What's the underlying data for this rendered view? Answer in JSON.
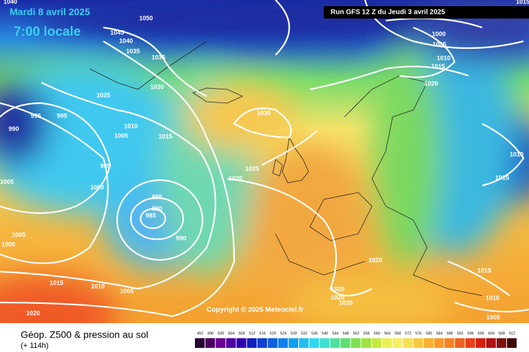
{
  "header": {
    "date": "Mardi 8 avril 2025",
    "time": "7:00 locale",
    "run": "Run GFS 12 Z du Jeudi 3 avril 2025"
  },
  "isobar_labels": [
    1050,
    1045,
    1040,
    1035,
    1035,
    1030,
    1025,
    1010,
    1005,
    1015,
    995,
    995,
    990,
    995,
    1000,
    1005,
    995,
    990,
    985,
    990,
    1005,
    1000,
    1015,
    1010,
    1005,
    1020,
    1030,
    1025,
    1020,
    1020,
    1020,
    1020,
    1020,
    1000,
    1005,
    1010,
    1015,
    1020,
    1010,
    1015,
    1015,
    1010,
    1005,
    1040,
    1015
  ],
  "copyright": "Copyright © 2025 Meteociel.fr",
  "footer": {
    "title": "Géop. Z500 & pression au sol",
    "lead": "(+ 114h)"
  },
  "scale": [
    492,
    496,
    500,
    504,
    508,
    512,
    516,
    520,
    524,
    528,
    532,
    536,
    540,
    544,
    548,
    552,
    556,
    560,
    564,
    568,
    572,
    576,
    580,
    584,
    588,
    592,
    596,
    600,
    604,
    608,
    612
  ]
}
